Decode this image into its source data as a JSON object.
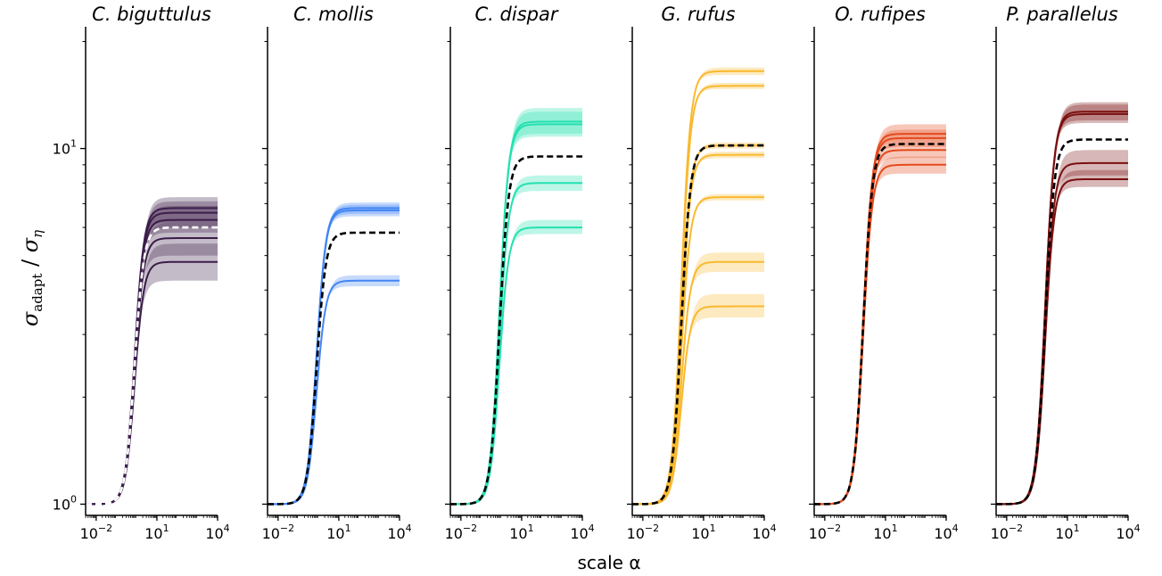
{
  "chart_data": {
    "type": "line",
    "xlabel": "scale α",
    "ylabel": {
      "main": "σ",
      "sub1": "adapt",
      "slash": " / ",
      "sub2": "η"
    },
    "x_scale": "log",
    "y_scale": "log",
    "xlim": [
      0.003,
      10000
    ],
    "ylim": [
      0.93,
      22
    ],
    "x_ticks": [
      0.01,
      10,
      10000
    ],
    "x_tick_labels": [
      {
        "base": "10",
        "exp": "−2"
      },
      {
        "base": "10",
        "exp": "1"
      },
      {
        "base": "10",
        "exp": "4"
      }
    ],
    "y_ticks": [
      1,
      10
    ],
    "y_tick_labels": [
      {
        "base": "10",
        "exp": "0"
      },
      {
        "base": "10",
        "exp": "1"
      }
    ],
    "grid": false,
    "panels": [
      {
        "title": "C. biguttulus",
        "color": "#3b1d4a",
        "mean_color": "#ffffff",
        "mean_plateau": 6.0,
        "individuals": [
          {
            "plateau": 6.8,
            "band": [
              6.2,
              7.3
            ]
          },
          {
            "plateau": 6.6,
            "band": [
              6.0,
              7.1
            ]
          },
          {
            "plateau": 6.3,
            "band": [
              5.8,
              6.9
            ]
          },
          {
            "plateau": 5.6,
            "band": [
              5.0,
              6.2
            ]
          },
          {
            "plateau": 4.8,
            "band": [
              4.25,
              5.4
            ]
          }
        ]
      },
      {
        "title": "C. mollis",
        "color": "#4285f4",
        "mean_color": "#000000",
        "mean_plateau": 5.8,
        "individuals": [
          {
            "plateau": 6.8,
            "band": [
              6.55,
              7.05
            ]
          },
          {
            "plateau": 6.7,
            "band": [
              6.45,
              6.95
            ]
          },
          {
            "plateau": 4.25,
            "band": [
              4.1,
              4.4
            ]
          }
        ]
      },
      {
        "title": "C. dispar",
        "color": "#25e0b0",
        "mean_color": "#000000",
        "mean_plateau": 9.5,
        "individuals": [
          {
            "plateau": 11.9,
            "band": [
              11.0,
              13.0
            ]
          },
          {
            "plateau": 11.7,
            "band": [
              10.8,
              12.7
            ]
          },
          {
            "plateau": 8.0,
            "band": [
              7.6,
              8.4
            ]
          },
          {
            "plateau": 6.0,
            "band": [
              5.75,
              6.3
            ]
          }
        ]
      },
      {
        "title": "G. rufus",
        "color": "#f9b92f",
        "mean_color": "#000000",
        "mean_plateau": 10.2,
        "individuals": [
          {
            "plateau": 16.5,
            "band": [
              16.1,
              16.9
            ]
          },
          {
            "plateau": 15.0,
            "band": [
              14.7,
              15.3
            ]
          },
          {
            "plateau": 10.2,
            "band": [
              10.0,
              10.4
            ]
          },
          {
            "plateau": 9.6,
            "band": [
              9.4,
              9.8
            ]
          },
          {
            "plateau": 7.3,
            "band": [
              7.15,
              7.45
            ]
          },
          {
            "plateau": 4.8,
            "band": [
              4.5,
              5.1
            ]
          },
          {
            "plateau": 3.6,
            "band": [
              3.35,
              3.9
            ]
          }
        ]
      },
      {
        "title": "O. rufipes",
        "color": "#e44a1c",
        "mean_color": "#000000",
        "mean_plateau": 10.3,
        "individuals": [
          {
            "plateau": 11.0,
            "band": [
              10.4,
              11.7
            ]
          },
          {
            "plateau": 10.7,
            "band": [
              10.1,
              11.3
            ]
          },
          {
            "plateau": 9.9,
            "band": [
              9.4,
              10.4
            ]
          },
          {
            "plateau": 9.0,
            "band": [
              8.5,
              9.5
            ]
          }
        ]
      },
      {
        "title": "P. parallelus",
        "color": "#7b1010",
        "mean_color": "#000000",
        "mean_plateau": 10.6,
        "individuals": [
          {
            "plateau": 12.7,
            "band": [
              12.0,
              13.5
            ]
          },
          {
            "plateau": 12.5,
            "band": [
              11.8,
              13.3
            ]
          },
          {
            "plateau": 9.1,
            "band": [
              8.4,
              9.9
            ]
          },
          {
            "plateau": 8.2,
            "band": [
              7.8,
              8.7
            ]
          }
        ]
      }
    ]
  }
}
